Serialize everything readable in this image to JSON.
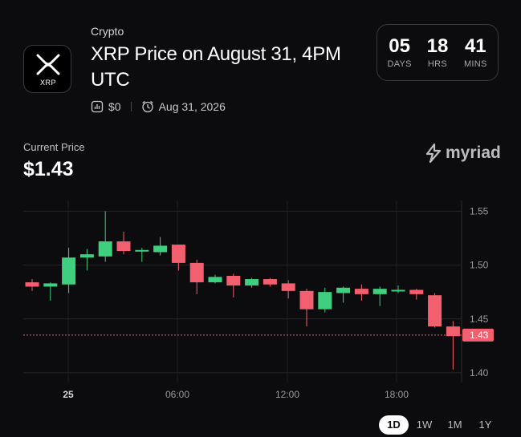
{
  "header": {
    "category": "Crypto",
    "title": "XRP Price on August 31, 4PM UTC",
    "logo_text": "XRP",
    "volume": "$0",
    "date": "Aug 31, 2026"
  },
  "countdown": [
    {
      "value": "05",
      "label": "DAYS"
    },
    {
      "value": "18",
      "label": "HRS"
    },
    {
      "value": "41",
      "label": "MINS"
    }
  ],
  "price": {
    "label": "Current Price",
    "value": "$1.43"
  },
  "brand": "myriad",
  "range_buttons": [
    {
      "label": "1D",
      "active": true
    },
    {
      "label": "1W",
      "active": false
    },
    {
      "label": "1M",
      "active": false
    },
    {
      "label": "1Y",
      "active": false
    }
  ],
  "colors": {
    "up": "#3ecf7f",
    "down": "#f2606f",
    "background": "#0c0c0e"
  },
  "chart_data": {
    "type": "candlestick",
    "x_tick_labels": [
      "25",
      "06:00",
      "12:00",
      "18:00"
    ],
    "y_tick_labels": [
      "1.55",
      "1.50",
      "1.45",
      "1.40"
    ],
    "ylim": [
      1.391,
      1.56
    ],
    "current_price_label": "1.43",
    "current_price": 1.435,
    "grid": true,
    "candles": [
      {
        "open": 1.484,
        "high": 1.487,
        "low": 1.476,
        "close": 1.48
      },
      {
        "open": 1.48,
        "high": 1.484,
        "low": 1.467,
        "close": 1.483
      },
      {
        "open": 1.482,
        "high": 1.516,
        "low": 1.474,
        "close": 1.507
      },
      {
        "open": 1.507,
        "high": 1.515,
        "low": 1.495,
        "close": 1.51
      },
      {
        "open": 1.508,
        "high": 1.55,
        "low": 1.503,
        "close": 1.522
      },
      {
        "open": 1.522,
        "high": 1.531,
        "low": 1.51,
        "close": 1.513
      },
      {
        "open": 1.513,
        "high": 1.516,
        "low": 1.503,
        "close": 1.514
      },
      {
        "open": 1.512,
        "high": 1.526,
        "low": 1.509,
        "close": 1.518
      },
      {
        "open": 1.519,
        "high": 1.519,
        "low": 1.495,
        "close": 1.502
      },
      {
        "open": 1.502,
        "high": 1.505,
        "low": 1.473,
        "close": 1.484
      },
      {
        "open": 1.484,
        "high": 1.491,
        "low": 1.483,
        "close": 1.489
      },
      {
        "open": 1.49,
        "high": 1.492,
        "low": 1.47,
        "close": 1.481
      },
      {
        "open": 1.481,
        "high": 1.488,
        "low": 1.479,
        "close": 1.487
      },
      {
        "open": 1.487,
        "high": 1.488,
        "low": 1.48,
        "close": 1.482
      },
      {
        "open": 1.483,
        "high": 1.486,
        "low": 1.469,
        "close": 1.476
      },
      {
        "open": 1.476,
        "high": 1.478,
        "low": 1.443,
        "close": 1.459
      },
      {
        "open": 1.459,
        "high": 1.479,
        "low": 1.456,
        "close": 1.475
      },
      {
        "open": 1.474,
        "high": 1.48,
        "low": 1.465,
        "close": 1.479
      },
      {
        "open": 1.478,
        "high": 1.482,
        "low": 1.467,
        "close": 1.473
      },
      {
        "open": 1.473,
        "high": 1.48,
        "low": 1.462,
        "close": 1.478
      },
      {
        "open": 1.477,
        "high": 1.481,
        "low": 1.474,
        "close": 1.477
      },
      {
        "open": 1.477,
        "high": 1.478,
        "low": 1.468,
        "close": 1.473
      },
      {
        "open": 1.472,
        "high": 1.474,
        "low": 1.442,
        "close": 1.443
      },
      {
        "open": 1.443,
        "high": 1.448,
        "low": 1.403,
        "close": 1.434
      }
    ]
  }
}
